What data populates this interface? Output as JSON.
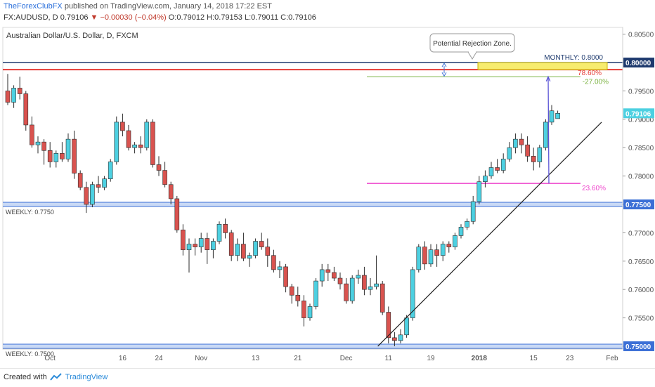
{
  "header": {
    "brand": "TheForexClubFX",
    "published": " published on TradingView.com, January 14, 2018 17:22 EST",
    "symbol": "FX:AUDUSD, D",
    "last": "0.79106",
    "change": "▼ −0.00030 (−0.04%)",
    "ohlc": "O:0.79012 H:0.79153 L:0.79011 C:0.79106"
  },
  "footer": {
    "created_with": "Created with",
    "tradingview": "TradingView"
  },
  "chart_data": {
    "type": "candlestick",
    "title": "Australian Dollar/U.S. Dollar, D, FXCM",
    "ylim": [
      0.7495,
      0.8062
    ],
    "yticks": [
      0.75,
      0.755,
      0.76,
      0.765,
      0.77,
      0.775,
      0.78,
      0.785,
      0.79,
      0.795,
      0.8,
      0.805
    ],
    "xticks": [
      {
        "i": 7,
        "label": "Oct"
      },
      {
        "i": 19,
        "label": "16"
      },
      {
        "i": 25,
        "label": "24"
      },
      {
        "i": 32,
        "label": "Nov"
      },
      {
        "i": 41,
        "label": "13"
      },
      {
        "i": 48,
        "label": "21"
      },
      {
        "i": 56,
        "label": "Dec"
      },
      {
        "i": 63,
        "label": "11"
      },
      {
        "i": 70,
        "label": "19"
      },
      {
        "i": 78,
        "label": "2018"
      },
      {
        "i": 87,
        "label": "15"
      },
      {
        "i": 93,
        "label": "23"
      },
      {
        "i": 100,
        "label": "Feb"
      }
    ],
    "current_price": "0.79106",
    "up_color": "#4dd0e1",
    "down_color": "#d9534f",
    "candles": [
      [
        0.795,
        0.798,
        0.7925,
        0.793
      ],
      [
        0.793,
        0.796,
        0.792,
        0.7955
      ],
      [
        0.7955,
        0.7975,
        0.7935,
        0.7945
      ],
      [
        0.7945,
        0.795,
        0.788,
        0.789
      ],
      [
        0.789,
        0.7905,
        0.785,
        0.7855
      ],
      [
        0.7855,
        0.787,
        0.784,
        0.786
      ],
      [
        0.786,
        0.7865,
        0.782,
        0.7845
      ],
      [
        0.7845,
        0.786,
        0.7815,
        0.7825
      ],
      [
        0.7825,
        0.7845,
        0.7815,
        0.784
      ],
      [
        0.784,
        0.786,
        0.7825,
        0.783
      ],
      [
        0.783,
        0.7875,
        0.7825,
        0.7865
      ],
      [
        0.7865,
        0.788,
        0.7795,
        0.7805
      ],
      [
        0.7805,
        0.781,
        0.7775,
        0.778
      ],
      [
        0.778,
        0.779,
        0.7735,
        0.775
      ],
      [
        0.775,
        0.779,
        0.7745,
        0.7785
      ],
      [
        0.7785,
        0.78,
        0.777,
        0.778
      ],
      [
        0.778,
        0.78,
        0.7775,
        0.7795
      ],
      [
        0.7795,
        0.783,
        0.779,
        0.7825
      ],
      [
        0.7825,
        0.7905,
        0.782,
        0.7895
      ],
      [
        0.7895,
        0.791,
        0.787,
        0.788
      ],
      [
        0.788,
        0.789,
        0.7845,
        0.785
      ],
      [
        0.785,
        0.786,
        0.784,
        0.7855
      ],
      [
        0.7855,
        0.787,
        0.784,
        0.785
      ],
      [
        0.785,
        0.79,
        0.7845,
        0.7895
      ],
      [
        0.7895,
        0.79,
        0.7815,
        0.782
      ],
      [
        0.782,
        0.7835,
        0.78,
        0.781
      ],
      [
        0.781,
        0.7825,
        0.778,
        0.7785
      ],
      [
        0.7785,
        0.779,
        0.775,
        0.776
      ],
      [
        0.776,
        0.7765,
        0.77,
        0.7705
      ],
      [
        0.7705,
        0.7715,
        0.766,
        0.767
      ],
      [
        0.767,
        0.769,
        0.763,
        0.768
      ],
      [
        0.768,
        0.769,
        0.766,
        0.7675
      ],
      [
        0.7675,
        0.77,
        0.7665,
        0.769
      ],
      [
        0.769,
        0.77,
        0.7645,
        0.767
      ],
      [
        0.767,
        0.769,
        0.7655,
        0.7685
      ],
      [
        0.7685,
        0.772,
        0.768,
        0.7715
      ],
      [
        0.7715,
        0.7725,
        0.769,
        0.77
      ],
      [
        0.77,
        0.7705,
        0.765,
        0.766
      ],
      [
        0.766,
        0.769,
        0.765,
        0.768
      ],
      [
        0.768,
        0.77,
        0.765,
        0.7655
      ],
      [
        0.7655,
        0.7665,
        0.764,
        0.766
      ],
      [
        0.766,
        0.769,
        0.7655,
        0.7685
      ],
      [
        0.7685,
        0.77,
        0.767,
        0.7675
      ],
      [
        0.7675,
        0.769,
        0.764,
        0.766
      ],
      [
        0.766,
        0.767,
        0.763,
        0.7635
      ],
      [
        0.7635,
        0.765,
        0.762,
        0.764
      ],
      [
        0.764,
        0.7645,
        0.7595,
        0.7605
      ],
      [
        0.7605,
        0.761,
        0.7575,
        0.759
      ],
      [
        0.759,
        0.7605,
        0.757,
        0.758
      ],
      [
        0.758,
        0.759,
        0.7535,
        0.755
      ],
      [
        0.755,
        0.7575,
        0.7545,
        0.757
      ],
      [
        0.757,
        0.762,
        0.7565,
        0.7615
      ],
      [
        0.7615,
        0.7645,
        0.7605,
        0.7635
      ],
      [
        0.7635,
        0.7645,
        0.7615,
        0.763
      ],
      [
        0.763,
        0.764,
        0.7615,
        0.762
      ],
      [
        0.762,
        0.763,
        0.76,
        0.761
      ],
      [
        0.761,
        0.762,
        0.7575,
        0.758
      ],
      [
        0.758,
        0.7625,
        0.7575,
        0.762
      ],
      [
        0.762,
        0.7635,
        0.761,
        0.7625
      ],
      [
        0.7625,
        0.764,
        0.759,
        0.76
      ],
      [
        0.76,
        0.762,
        0.759,
        0.7605
      ],
      [
        0.7605,
        0.766,
        0.76,
        0.761
      ],
      [
        0.761,
        0.7615,
        0.7555,
        0.756
      ],
      [
        0.756,
        0.757,
        0.7505,
        0.7515
      ],
      [
        0.7515,
        0.7525,
        0.75,
        0.751
      ],
      [
        0.751,
        0.753,
        0.7505,
        0.752
      ],
      [
        0.752,
        0.7555,
        0.7515,
        0.755
      ],
      [
        0.755,
        0.764,
        0.7545,
        0.7635
      ],
      [
        0.7635,
        0.768,
        0.763,
        0.7675
      ],
      [
        0.7675,
        0.7685,
        0.7635,
        0.7645
      ],
      [
        0.7645,
        0.768,
        0.764,
        0.767
      ],
      [
        0.767,
        0.768,
        0.764,
        0.766
      ],
      [
        0.766,
        0.7685,
        0.765,
        0.768
      ],
      [
        0.768,
        0.7685,
        0.7665,
        0.7675
      ],
      [
        0.7675,
        0.77,
        0.767,
        0.7695
      ],
      [
        0.7695,
        0.7715,
        0.769,
        0.771
      ],
      [
        0.771,
        0.7725,
        0.7705,
        0.772
      ],
      [
        0.772,
        0.7765,
        0.7715,
        0.7755
      ],
      [
        0.7755,
        0.78,
        0.775,
        0.779
      ],
      [
        0.779,
        0.781,
        0.778,
        0.78
      ],
      [
        0.78,
        0.7825,
        0.7795,
        0.7815
      ],
      [
        0.7815,
        0.783,
        0.7805,
        0.781
      ],
      [
        0.781,
        0.784,
        0.7805,
        0.783
      ],
      [
        0.783,
        0.786,
        0.7825,
        0.785
      ],
      [
        0.785,
        0.7875,
        0.784,
        0.7865
      ],
      [
        0.7865,
        0.7875,
        0.784,
        0.7855
      ],
      [
        0.7855,
        0.787,
        0.7825,
        0.7835
      ],
      [
        0.7835,
        0.785,
        0.781,
        0.7825
      ],
      [
        0.7825,
        0.7855,
        0.7815,
        0.785
      ],
      [
        0.785,
        0.79,
        0.7845,
        0.7895
      ],
      [
        0.7895,
        0.7925,
        0.789,
        0.7915
      ],
      [
        0.79012,
        0.79153,
        0.79011,
        0.79106
      ]
    ],
    "levels": [
      {
        "name": "monthly-0.8000",
        "value": 0.8,
        "color": "#1e3a6e",
        "label": "MONTHLY: 0.8000",
        "side": "right",
        "price_tag": "0.80000"
      },
      {
        "name": "fib-78.6",
        "value": 0.79875,
        "color": "#e53935",
        "label": "78.60%",
        "side": "right"
      },
      {
        "name": "fib-neg27",
        "value": 0.7975,
        "color": "#7cb342",
        "label": "-27.00%",
        "side": "right"
      },
      {
        "name": "fib-23.6",
        "value": 0.7787,
        "color": "#ee44cc",
        "label": "23.60%",
        "side": "right"
      },
      {
        "name": "weekly-0.7750",
        "value": 0.775,
        "color": "#3b6fd6",
        "label": "WEEKLY: 0.7750",
        "side": "left",
        "price_tag": "0.77500"
      },
      {
        "name": "weekly-0.7500",
        "value": 0.75,
        "color": "#3b6fd6",
        "label": "WEEKLY: 0.7500",
        "side": "left",
        "price_tag": "0.75000"
      }
    ],
    "annotations": {
      "callout": "Potential Rejection Zone."
    }
  }
}
